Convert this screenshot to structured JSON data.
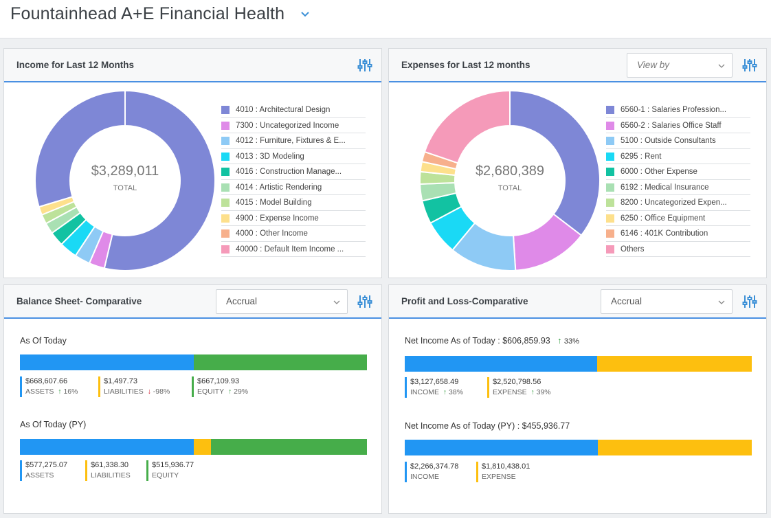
{
  "page": {
    "title": "Fountainhead A+E Financial Health"
  },
  "colors": {
    "blue": "#2196f3",
    "green": "#46ad4a",
    "yellow": "#fdbf0f",
    "accent": "#4a90e2"
  },
  "income": {
    "title": "Income for Last 12 Months",
    "total": "$3,289,011",
    "total_label": "TOTAL",
    "legend": [
      {
        "label": "4010 : Architectural Design",
        "color": "#7e87d6"
      },
      {
        "label": "7300 : Uncategorized Income",
        "color": "#df8ae8"
      },
      {
        "label": "4012 : Furniture, Fixtures & E...",
        "color": "#8ecaf5"
      },
      {
        "label": "4013 : 3D Modeling",
        "color": "#1ad9f5"
      },
      {
        "label": "4016 : Construction Manage...",
        "color": "#12c2a2"
      },
      {
        "label": "4014 : Artistic Rendering",
        "color": "#a9e0b3"
      },
      {
        "label": "4015 : Model Building",
        "color": "#bde29a"
      },
      {
        "label": "4900 : Expense Income",
        "color": "#fde08c"
      },
      {
        "label": "4000 : Other Income",
        "color": "#f7b08c"
      },
      {
        "label": "40000 : Default Item Income ...",
        "color": "#f59ab9"
      }
    ],
    "slices": [
      {
        "label": "4010 : Architectural Design",
        "value": 0.537,
        "color": "#7e87d6"
      },
      {
        "label": "7300 : Uncategorized Income",
        "value": 0.028,
        "color": "#df8ae8"
      },
      {
        "label": "4012 : Furniture, Fixtures & E...",
        "value": 0.028,
        "color": "#8ecaf5"
      },
      {
        "label": "4013 : 3D Modeling",
        "value": 0.032,
        "color": "#1ad9f5"
      },
      {
        "label": "4016 : Construction Manage...",
        "value": 0.026,
        "color": "#12c2a2"
      },
      {
        "label": "4014 : Artistic Rendering",
        "value": 0.02,
        "color": "#a9e0b3"
      },
      {
        "label": "4015 : Model Building",
        "value": 0.017,
        "color": "#bde29a"
      },
      {
        "label": "4900 : Expense Income",
        "value": 0.015,
        "color": "#fde08c"
      },
      {
        "label": "4000 : Other Income",
        "value": 0.0,
        "color": "#f7b08c"
      },
      {
        "label": "40000 : Default Item Income ...",
        "value": 0.0,
        "color": "#f59ab9"
      },
      {
        "label": "4010 : Architectural Design",
        "value": 0.297,
        "color": "#7e87d6"
      }
    ]
  },
  "expenses": {
    "title": "Expenses for Last 12 months",
    "view_by": "View by",
    "total": "$2,680,389",
    "total_label": "TOTAL",
    "legend": [
      {
        "label": "6560-1 : Salaries Profession...",
        "color": "#7e87d6"
      },
      {
        "label": "6560-2 : Salaries Office Staff",
        "color": "#df8ae8"
      },
      {
        "label": "5100 : Outside Consultants",
        "color": "#8ecaf5"
      },
      {
        "label": "6295 : Rent",
        "color": "#1ad9f5"
      },
      {
        "label": "6000 : Other Expense",
        "color": "#12c2a2"
      },
      {
        "label": "6192 : Medical Insurance",
        "color": "#a9e0b3"
      },
      {
        "label": "8200 : Uncategorized Expen...",
        "color": "#bde29a"
      },
      {
        "label": "6250 : Office Equipment",
        "color": "#fde08c"
      },
      {
        "label": "6146 : 401K Contribution",
        "color": "#f7b08c"
      },
      {
        "label": "Others",
        "color": "#f59ab9"
      }
    ],
    "slices": [
      {
        "label": "6560-1 : Salaries Profession...",
        "value": 0.354,
        "color": "#7e87d6"
      },
      {
        "label": "6560-2 : Salaries Office Staff",
        "value": 0.136,
        "color": "#df8ae8"
      },
      {
        "label": "5100 : Outside Consultants",
        "value": 0.12,
        "color": "#8ecaf5"
      },
      {
        "label": "6295 : Rent",
        "value": 0.062,
        "color": "#1ad9f5"
      },
      {
        "label": "6000 : Other Expense",
        "value": 0.042,
        "color": "#12c2a2"
      },
      {
        "label": "6192 : Medical Insurance",
        "value": 0.03,
        "color": "#a9e0b3"
      },
      {
        "label": "8200 : Uncategorized Expen...",
        "value": 0.022,
        "color": "#bde29a"
      },
      {
        "label": "6250 : Office Equipment",
        "value": 0.018,
        "color": "#fde08c"
      },
      {
        "label": "6146 : 401K Contribution",
        "value": 0.018,
        "color": "#f7b08c"
      },
      {
        "label": "Others",
        "value": 0.198,
        "color": "#f59ab9"
      }
    ]
  },
  "balance": {
    "title": "Balance Sheet- Comparative",
    "basis": "Accrual",
    "today": {
      "label": "As Of Today",
      "assets_frac": 0.5,
      "liab_frac": 0.0,
      "equity_frac": 0.5,
      "assets": {
        "value": "$668,607.66",
        "key": "ASSETS",
        "arrow": "↑",
        "pct": "16%"
      },
      "liabilities": {
        "value": "$1,497.73",
        "key": "LIABILITIES",
        "arrow": "↓",
        "pct": "-98%"
      },
      "equity": {
        "value": "$667,109.93",
        "key": "EQUITY",
        "arrow": "↑",
        "pct": "29%"
      }
    },
    "py": {
      "label": "As Of Today (PY)",
      "assets_frac": 0.5,
      "liab_frac": 0.05,
      "equity_frac": 0.45,
      "assets": {
        "value": "$577,275.07",
        "key": "ASSETS"
      },
      "liabilities": {
        "value": "$61,338.30",
        "key": "LIABILITIES"
      },
      "equity": {
        "value": "$515,936.77",
        "key": "EQUITY"
      }
    }
  },
  "pnl": {
    "title": "Profit and Loss-Comparative",
    "basis": "Accrual",
    "today": {
      "label": "Net Income As of Today : $606,859.93",
      "arrow": "↑",
      "pct": "33%",
      "income_frac": 0.554,
      "expense_frac": 0.446,
      "income": {
        "value": "$3,127,658.49",
        "key": "INCOME",
        "arrow": "↑",
        "pct": "38%"
      },
      "expense": {
        "value": "$2,520,798.56",
        "key": "EXPENSE",
        "arrow": "↑",
        "pct": "39%"
      }
    },
    "py": {
      "label": "Net Income As of Today (PY) : $455,936.77",
      "income_frac": 0.556,
      "expense_frac": 0.444,
      "income": {
        "value": "$2,266,374.78",
        "key": "INCOME"
      },
      "expense": {
        "value": "$1,810,438.01",
        "key": "EXPENSE"
      }
    }
  }
}
